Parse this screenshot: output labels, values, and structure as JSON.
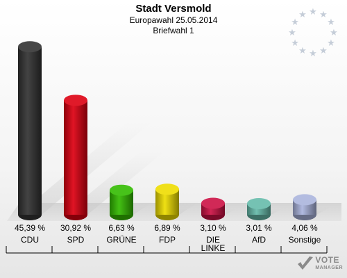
{
  "header": {
    "title": "Stadt Versmold",
    "subtitle": "Europawahl 25.05.2014",
    "subtitle2": "Briefwahl 1"
  },
  "logo": {
    "line1": "VOTE",
    "line2": "MANAGER"
  },
  "chart_data": {
    "type": "bar",
    "categories": [
      "CDU",
      "SPD",
      "GRÜNE",
      "FDP",
      "DIE LINKE",
      "AfD",
      "Sonstige"
    ],
    "category_lines": [
      [
        "CDU"
      ],
      [
        "SPD"
      ],
      [
        "GRÜNE"
      ],
      [
        "FDP"
      ],
      [
        "DIE",
        "LINKE"
      ],
      [
        "AfD"
      ],
      [
        "Sonstige"
      ]
    ],
    "values": [
      45.39,
      30.92,
      6.63,
      6.89,
      3.1,
      3.01,
      4.06
    ],
    "value_labels": [
      "45,39 %",
      "30,92 %",
      "6,63 %",
      "6,89 %",
      "3,10 %",
      "3,01 %",
      "4,06 %"
    ],
    "colors": [
      "#333333",
      "#dd0011",
      "#33bb00",
      "#eedd00",
      "#cc1144",
      "#66bbaa",
      "#aab4dd"
    ],
    "title": "Stadt Versmold",
    "subtitle": "Europawahl 25.05.2014 / Briefwahl 1",
    "xlabel": "",
    "ylabel": "",
    "ylim": [
      0,
      46
    ],
    "grid": false,
    "legend": "none"
  }
}
